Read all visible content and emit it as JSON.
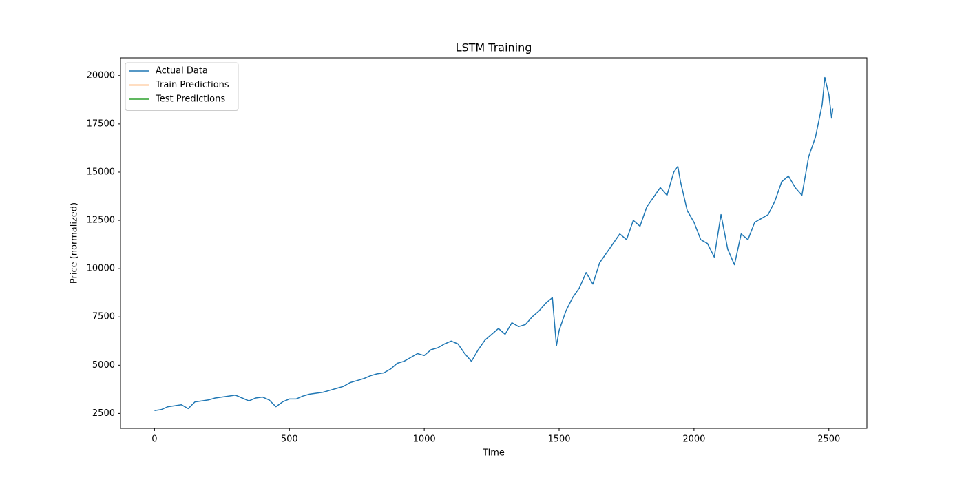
{
  "chart_data": {
    "type": "line",
    "title": "LSTM Training",
    "x_label": "Time",
    "y_label": "Price (normalized)",
    "x": [
      0,
      25,
      50,
      75,
      100,
      125,
      150,
      175,
      200,
      225,
      250,
      275,
      300,
      325,
      350,
      375,
      400,
      425,
      450,
      475,
      500,
      525,
      550,
      575,
      600,
      625,
      650,
      675,
      700,
      725,
      750,
      775,
      800,
      825,
      850,
      875,
      900,
      925,
      950,
      975,
      1000,
      1025,
      1050,
      1075,
      1100,
      1125,
      1150,
      1175,
      1200,
      1225,
      1250,
      1275,
      1300,
      1325,
      1350,
      1375,
      1400,
      1425,
      1450,
      1475,
      1490,
      1500,
      1525,
      1550,
      1575,
      1600,
      1625,
      1650,
      1675,
      1700,
      1725,
      1750,
      1775,
      1800,
      1825,
      1850,
      1875,
      1900,
      1925,
      1940,
      1950,
      1975,
      2000,
      2025,
      2050,
      2075,
      2100,
      2125,
      2150,
      2175,
      2200,
      2225,
      2250,
      2275,
      2300,
      2325,
      2350,
      2375,
      2400,
      2425,
      2450,
      2475,
      2485,
      2500,
      2510,
      2515
    ],
    "series": [
      {
        "name": "Actual Data",
        "color": "#1f77b4",
        "values": [
          2650,
          2700,
          2850,
          2900,
          2950,
          2750,
          3100,
          3150,
          3200,
          3300,
          3350,
          3400,
          3450,
          3300,
          3150,
          3300,
          3350,
          3200,
          2850,
          3100,
          3250,
          3250,
          3400,
          3500,
          3550,
          3600,
          3700,
          3800,
          3900,
          4100,
          4200,
          4300,
          4450,
          4550,
          4600,
          4800,
          5100,
          5200,
          5400,
          5600,
          5500,
          5800,
          5900,
          6100,
          6250,
          6100,
          5600,
          5200,
          5800,
          6300,
          6600,
          6900,
          6600,
          7200,
          7000,
          7100,
          7500,
          7800,
          8200,
          8500,
          6000,
          6800,
          7800,
          8500,
          9000,
          9800,
          9200,
          10300,
          10800,
          11300,
          11800,
          11500,
          12500,
          12200,
          13200,
          13700,
          14200,
          13800,
          15000,
          15300,
          14500,
          13000,
          12400,
          11500,
          11300,
          10600,
          12800,
          11000,
          10200,
          11800,
          11500,
          12400,
          12600,
          12800,
          13500,
          14500,
          14800,
          14200,
          13800,
          15800,
          16800,
          18500,
          19900,
          19000,
          17800,
          18300
        ]
      },
      {
        "name": "Train Predictions",
        "color": "#ff7f0e",
        "values": [
          null,
          null,
          null,
          null,
          null,
          null,
          null,
          null,
          null,
          null,
          null,
          null,
          null,
          null,
          null,
          null,
          null,
          null,
          null,
          null,
          null,
          null,
          null,
          null,
          null,
          null,
          null,
          null,
          null,
          null,
          null,
          null,
          null,
          null,
          null,
          null,
          null,
          null,
          null,
          null,
          null,
          null,
          null,
          null,
          null,
          null,
          null,
          null,
          null,
          null,
          null,
          null,
          null,
          null,
          null,
          null,
          null,
          null,
          null,
          null,
          null,
          null,
          null,
          null,
          null,
          null,
          null,
          null,
          null,
          null,
          null,
          null,
          null,
          null,
          null,
          null,
          null,
          null,
          null,
          null,
          null,
          null,
          null,
          null,
          null,
          null,
          null,
          null,
          null,
          null,
          null,
          null,
          null,
          null,
          null,
          null,
          null,
          null,
          null,
          null,
          null,
          null,
          null,
          null,
          null,
          null
        ]
      },
      {
        "name": "Test Predictions",
        "color": "#2ca02c",
        "values": [
          null,
          null,
          null,
          null,
          null,
          null,
          null,
          null,
          null,
          null,
          null,
          null,
          null,
          null,
          null,
          null,
          null,
          null,
          null,
          null,
          null,
          null,
          null,
          null,
          null,
          null,
          null,
          null,
          null,
          null,
          null,
          null,
          null,
          null,
          null,
          null,
          null,
          null,
          null,
          null,
          null,
          null,
          null,
          null,
          null,
          null,
          null,
          null,
          null,
          null,
          null,
          null,
          null,
          null,
          null,
          null,
          null,
          null,
          null,
          null,
          null,
          null,
          null,
          null,
          null,
          null,
          null,
          null,
          null,
          null,
          null,
          null,
          null,
          null,
          null,
          null,
          null,
          null,
          null,
          null,
          null,
          null,
          null,
          null,
          null,
          null,
          null,
          null,
          null,
          null,
          null,
          null,
          null,
          null,
          null,
          null,
          null,
          null,
          null,
          null,
          null,
          null,
          null,
          null,
          null,
          null
        ]
      }
    ],
    "xlim": [
      -126,
      2641
    ],
    "xticks": [
      0,
      500,
      1000,
      1500,
      2000,
      2500
    ],
    "ylim": [
      1730,
      20920
    ],
    "yticks": [
      2500,
      5000,
      7500,
      10000,
      12500,
      15000,
      17500,
      20000
    ],
    "legend": "upper left"
  }
}
